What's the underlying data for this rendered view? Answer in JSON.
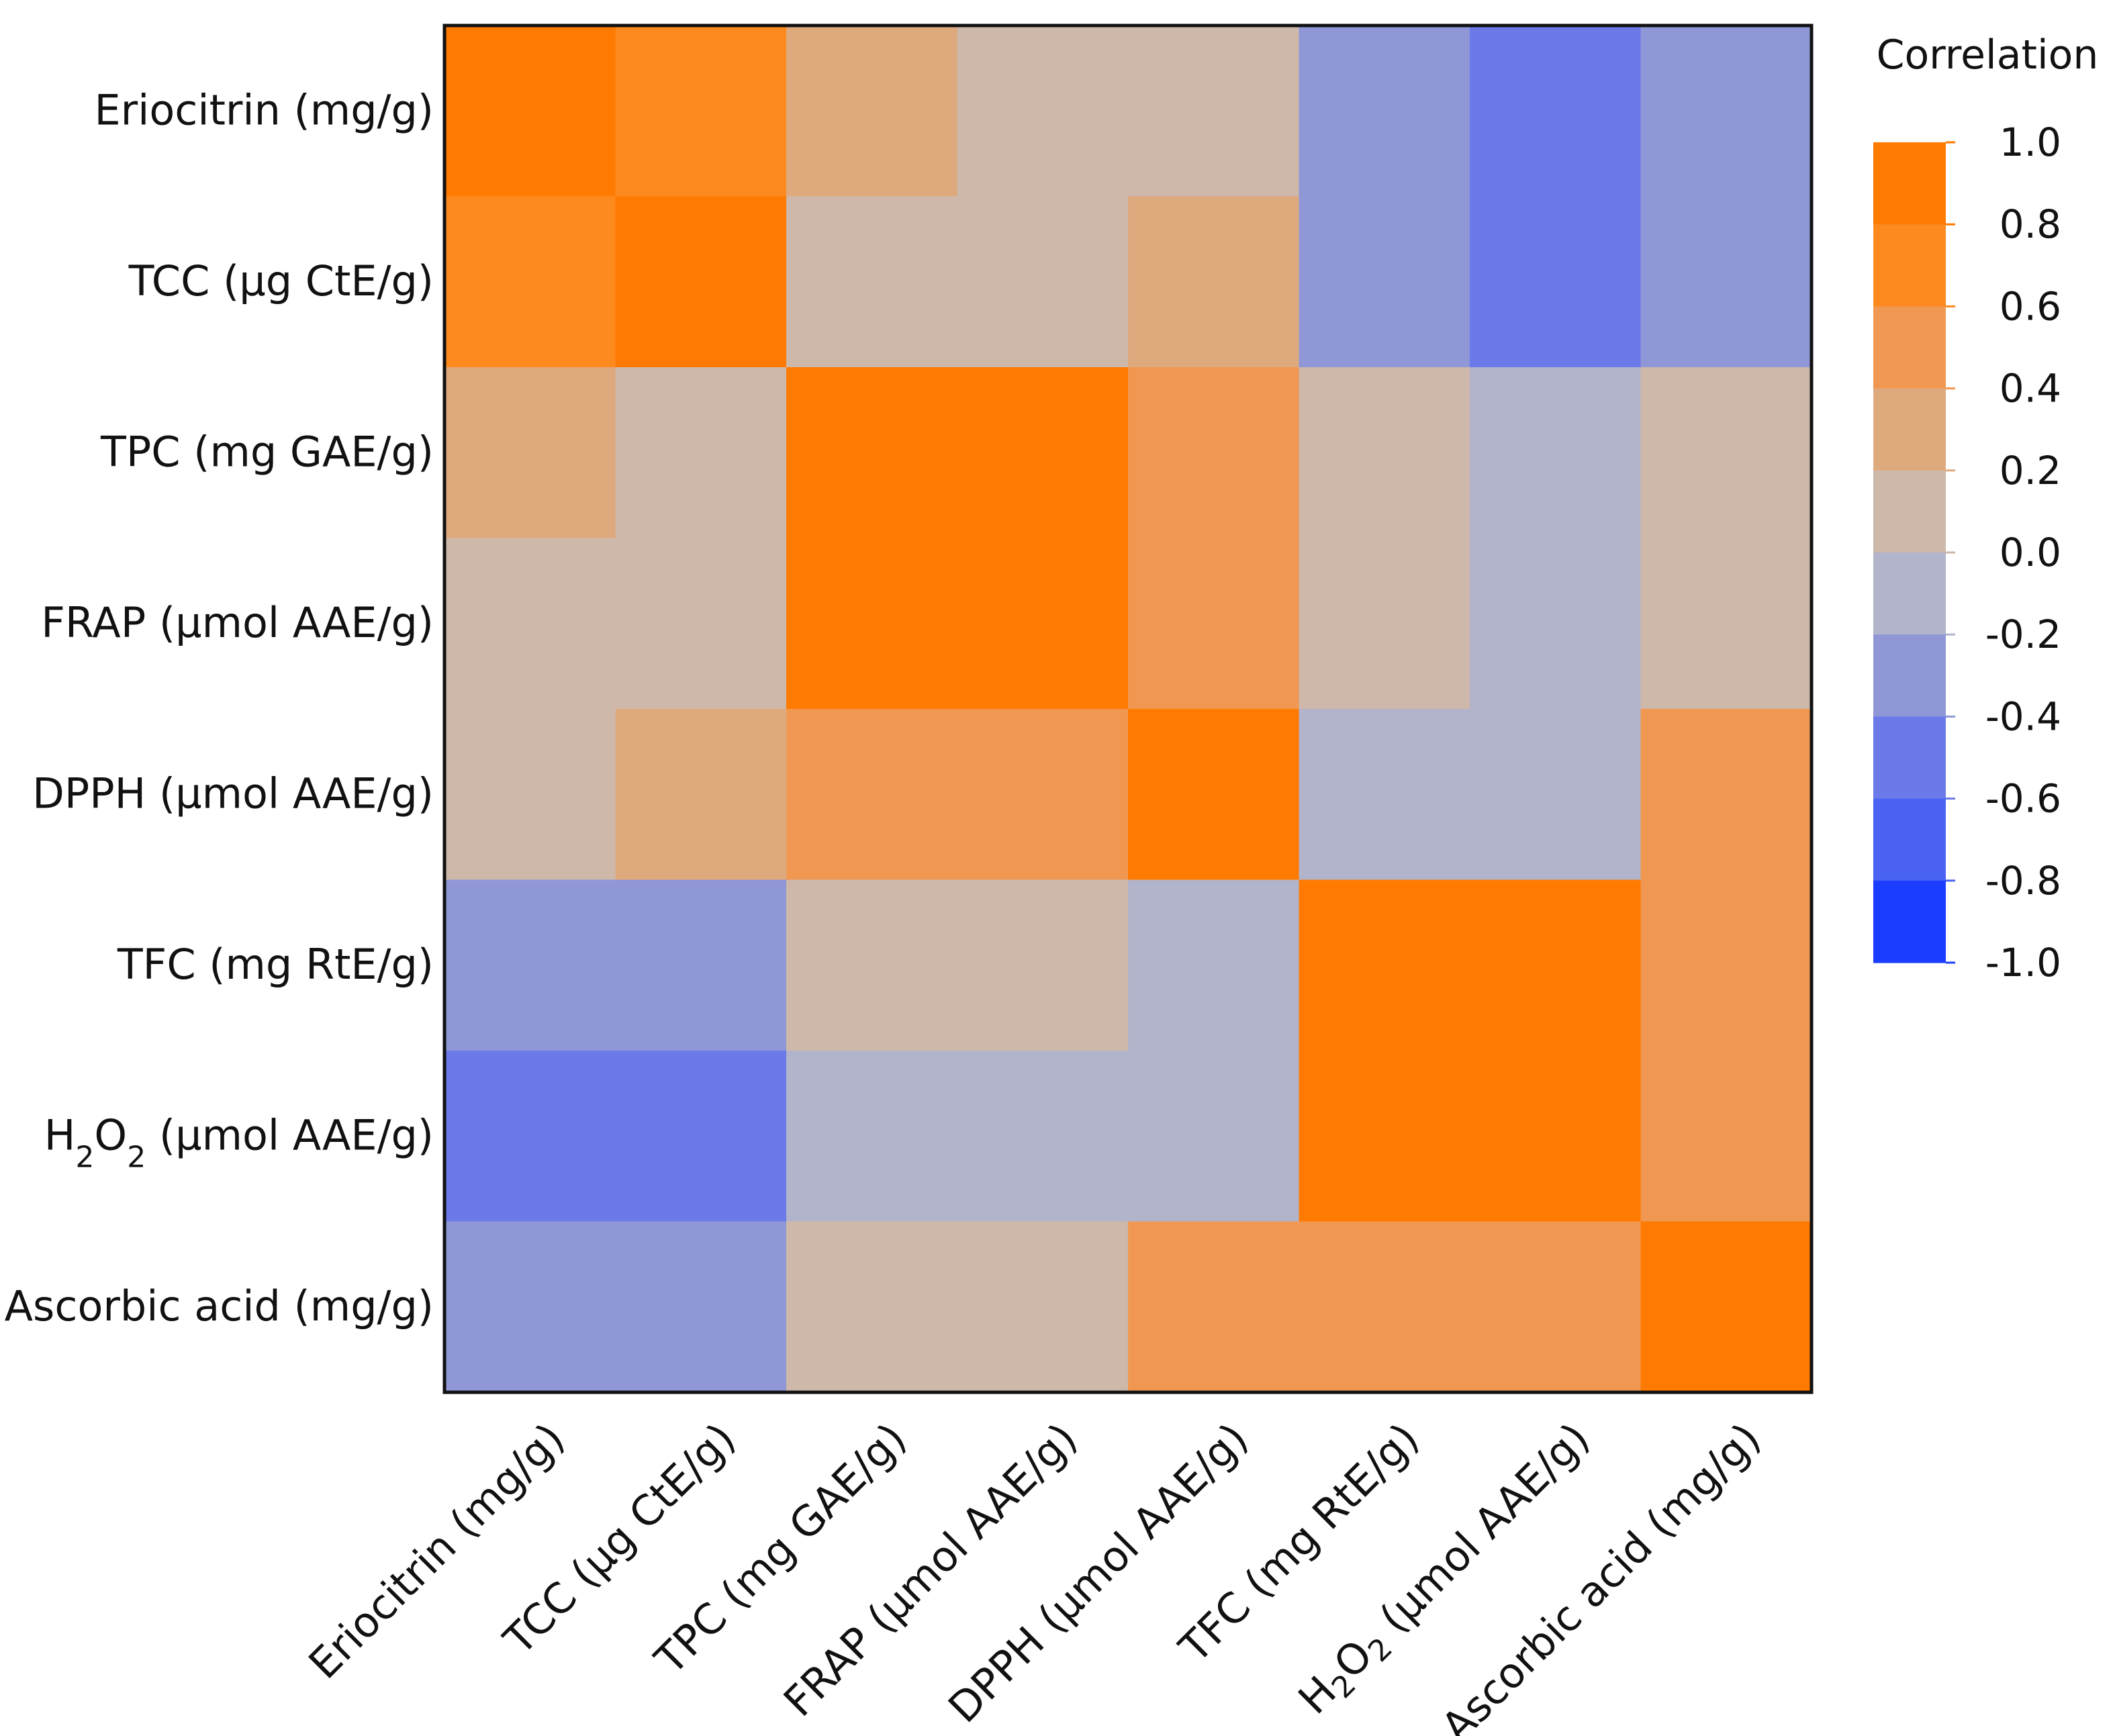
{
  "chart_data": {
    "type": "heatmap",
    "title": "",
    "xlabel": "",
    "ylabel": "",
    "row_labels": [
      {
        "text": "Eriocitrin (mg/g)"
      },
      {
        "text": "TCC (µg CtE/g)"
      },
      {
        "text": "TPC (mg GAE/g)"
      },
      {
        "text": "FRAP (µmol AAE/g)"
      },
      {
        "text": "DPPH (µmol AAE/g)"
      },
      {
        "text": "TFC (mg RtE/g)"
      },
      {
        "prefix": "H",
        "sub1": "2",
        "mid": "O",
        "sub2": "2",
        "suffix": " (µmol AAE/g)"
      },
      {
        "text": "Ascorbic acid (mg/g)"
      }
    ],
    "col_labels": [
      {
        "text": "Eriocitrin (mg/g)"
      },
      {
        "text": "TCC (µg CtE/g)"
      },
      {
        "text": "TPC (mg GAE/g)"
      },
      {
        "text": "FRAP (µmol AAE/g)"
      },
      {
        "text": "DPPH (µmol AAE/g)"
      },
      {
        "text": "TFC (mg RtE/g)"
      },
      {
        "prefix": "H",
        "sub1": "2",
        "mid": "O",
        "sub2": "2",
        "suffix": " (µmol AAE/g)"
      },
      {
        "text": "Ascorbic acid (mg/g)"
      }
    ],
    "matrix": [
      [
        1.0,
        0.7,
        0.3,
        0.1,
        0.1,
        -0.3,
        -0.5,
        -0.3
      ],
      [
        0.7,
        1.0,
        0.1,
        0.1,
        0.3,
        -0.3,
        -0.5,
        -0.3
      ],
      [
        0.3,
        0.1,
        1.0,
        1.0,
        0.5,
        0.1,
        -0.1,
        0.1
      ],
      [
        0.1,
        0.1,
        1.0,
        1.0,
        0.5,
        0.1,
        -0.1,
        0.1
      ],
      [
        0.1,
        0.3,
        0.5,
        0.5,
        1.0,
        -0.1,
        -0.1,
        0.5
      ],
      [
        -0.3,
        -0.3,
        0.1,
        0.1,
        -0.1,
        1.0,
        1.0,
        0.5
      ],
      [
        -0.5,
        -0.5,
        -0.1,
        -0.1,
        -0.1,
        1.0,
        1.0,
        0.5
      ],
      [
        -0.3,
        -0.3,
        0.1,
        0.1,
        0.5,
        0.5,
        0.5,
        1.0
      ]
    ],
    "value_range": [
      -1.0,
      1.0
    ],
    "legend": {
      "title": "Correlation",
      "position": "right",
      "ticks": [
        "1.0",
        "0.8",
        "0.6",
        "0.4",
        "0.2",
        "0.0",
        "-0.2",
        "-0.4",
        "-0.6",
        "-0.8",
        "-1.0"
      ],
      "bins": [
        {
          "from": 0.8,
          "to": 1.0,
          "color": "#FF7A00"
        },
        {
          "from": 0.6,
          "to": 0.8,
          "color": "#FD8A1F"
        },
        {
          "from": 0.4,
          "to": 0.6,
          "color": "#F09851"
        },
        {
          "from": 0.2,
          "to": 0.4,
          "color": "#DFA97E"
        },
        {
          "from": 0.0,
          "to": 0.2,
          "color": "#CDB8AA"
        },
        {
          "from": -0.2,
          "to": 0.0,
          "color": "#B2B4CB"
        },
        {
          "from": -0.4,
          "to": -0.2,
          "color": "#8F97D7"
        },
        {
          "from": -0.6,
          "to": -0.4,
          "color": "#6C79E8"
        },
        {
          "from": -0.8,
          "to": -0.6,
          "color": "#4A63F2"
        },
        {
          "from": -1.0,
          "to": -0.8,
          "color": "#1A3DFF"
        }
      ]
    }
  }
}
